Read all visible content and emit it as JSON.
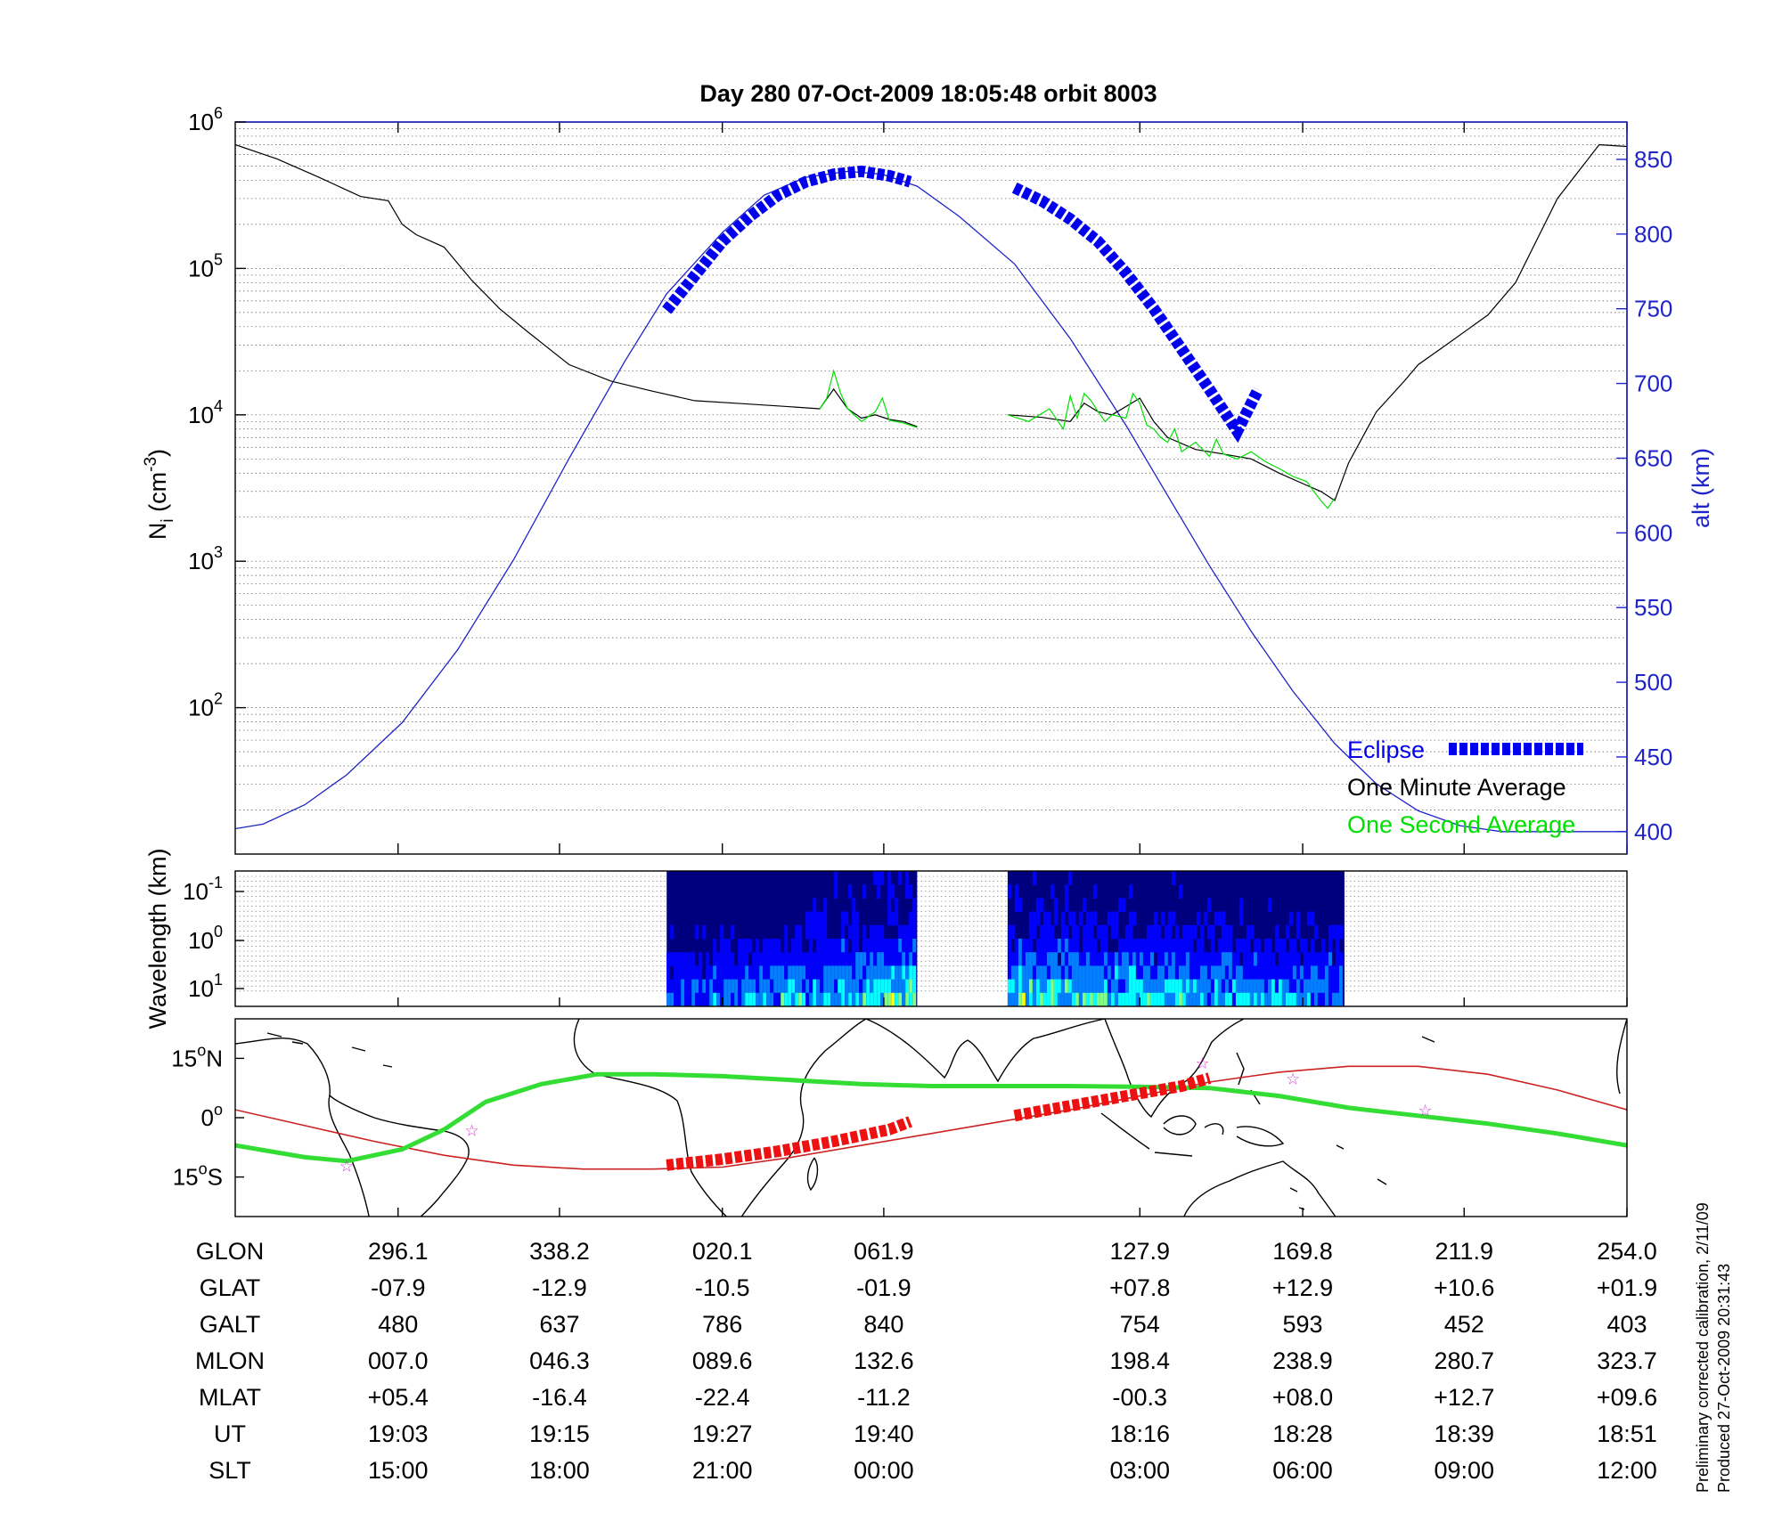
{
  "title": "Day 280  07-Oct-2009 18:05:48   orbit 8003",
  "colors": {
    "altitude": "#1f24c8",
    "minute_avg": "#000000",
    "second_avg": "#00e000",
    "eclipse": "#0000ee",
    "map_track": "#33dd33",
    "map_eclipse": "#ee1111",
    "map_magnetic_equator": "#cc2222",
    "map_stars": "#cc44cc"
  },
  "chart_data": [
    {
      "type": "line",
      "name": "density-altitude-panel",
      "xlim": [
        0,
        1
      ],
      "y_left": {
        "label_main": "N",
        "label_sub": "i",
        "label_unit_base": " (cm",
        "label_unit_exp": "-3",
        "label_unit_close": ")",
        "scale": "log",
        "ylim": [
          10,
          1000000
        ],
        "ticks": [
          {
            "value": 100,
            "base": "10",
            "exp": "2"
          },
          {
            "value": 1000,
            "base": "10",
            "exp": "3"
          },
          {
            "value": 10000,
            "base": "10",
            "exp": "4"
          },
          {
            "value": 100000,
            "base": "10",
            "exp": "5"
          },
          {
            "value": 1000000,
            "base": "10",
            "exp": "6"
          }
        ]
      },
      "y_right": {
        "label": "alt (km)",
        "ylim": [
          385,
          875
        ],
        "ticks": [
          400,
          450,
          500,
          550,
          600,
          650,
          700,
          750,
          800,
          850
        ]
      },
      "grid": true,
      "legend": {
        "position": "bottom-right",
        "entries": [
          {
            "label": "Eclipse",
            "color": "#0000ee"
          },
          {
            "label": "One Minute Average",
            "color": "#000000"
          },
          {
            "label": "One Second Average",
            "color": "#00e000"
          }
        ]
      },
      "series": [
        {
          "key": "altitude",
          "axis": "right",
          "x": [
            0.0,
            0.02,
            0.05,
            0.08,
            0.12,
            0.16,
            0.2,
            0.24,
            0.28,
            0.31,
            0.35,
            0.38,
            0.41,
            0.44,
            0.465,
            0.49,
            0.52,
            0.56,
            0.6,
            0.64,
            0.67,
            0.7,
            0.73,
            0.76,
            0.79,
            0.82,
            0.85,
            0.88,
            0.91,
            0.94,
            0.97,
            1.0
          ],
          "values": [
            402,
            405,
            418,
            438,
            473,
            522,
            582,
            650,
            715,
            760,
            801,
            826,
            838,
            842,
            840,
            832,
            812,
            780,
            730,
            672,
            625,
            578,
            534,
            494,
            459,
            432,
            414,
            404,
            400,
            400,
            400,
            400
          ]
        },
        {
          "key": "minute_avg",
          "axis": "left",
          "segments": [
            {
              "x": [
                0.0,
                0.03,
                0.06,
                0.09,
                0.11,
                0.12,
                0.13,
                0.15,
                0.17,
                0.19,
                0.21,
                0.24,
                0.27,
                0.3,
                0.33,
                0.36,
                0.39,
                0.42,
                0.43,
                0.44,
                0.45,
                0.46,
                0.47,
                0.48,
                0.49
              ],
              "values": [
                700000,
                560000,
                420000,
                310000,
                290000,
                200000,
                170000,
                140000,
                83000,
                53000,
                37000,
                22000,
                17000,
                14500,
                12500,
                12000,
                11500,
                11000,
                15000,
                11000,
                9500,
                10000,
                9300,
                9000,
                8300
              ]
            },
            {
              "x": [
                0.555,
                0.58,
                0.6,
                0.61,
                0.62,
                0.63,
                0.65,
                0.66,
                0.67,
                0.69,
                0.71,
                0.73,
                0.75,
                0.77,
                0.78,
                0.79,
                0.8,
                0.82,
                0.84,
                0.85,
                0.87,
                0.9,
                0.92,
                0.95,
                0.98,
                1.0
              ],
              "values": [
                10000,
                9600,
                9000,
                12000,
                10500,
                10000,
                13000,
                9000,
                7000,
                5800,
                5400,
                5000,
                4000,
                3300,
                3000,
                2600,
                4700,
                10500,
                17000,
                22000,
                30000,
                48000,
                80000,
                300000,
                700000,
                680000
              ]
            }
          ]
        },
        {
          "key": "second_avg",
          "axis": "left",
          "segments": [
            {
              "x": [
                0.42,
                0.425,
                0.43,
                0.435,
                0.44,
                0.45,
                0.46,
                0.465,
                0.47,
                0.48,
                0.49
              ],
              "values": [
                11000,
                13000,
                20000,
                14000,
                11000,
                9000,
                10500,
                13000,
                9200,
                8800,
                8200
              ]
            },
            {
              "x": [
                0.555,
                0.57,
                0.585,
                0.595,
                0.6,
                0.605,
                0.61,
                0.615,
                0.62,
                0.625,
                0.63,
                0.64,
                0.645,
                0.65,
                0.655,
                0.66,
                0.665,
                0.67,
                0.675,
                0.68,
                0.69,
                0.7,
                0.705,
                0.71,
                0.72,
                0.73,
                0.74,
                0.75,
                0.76,
                0.77,
                0.775,
                0.78,
                0.785,
                0.79
              ],
              "values": [
                10000,
                9000,
                11000,
                8000,
                13500,
                9500,
                14000,
                12500,
                10500,
                9000,
                10000,
                9500,
                14000,
                12000,
                8500,
                8000,
                7000,
                6500,
                8000,
                5600,
                6500,
                5200,
                6800,
                5400,
                5000,
                5600,
                4800,
                4300,
                3800,
                3500,
                3000,
                2600,
                2300,
                2700
              ]
            }
          ]
        },
        {
          "key": "eclipse",
          "axis": "right",
          "segments": [
            {
              "x": [
                0.31,
                0.33,
                0.35,
                0.37,
                0.39,
                0.41,
                0.43,
                0.45,
                0.47,
                0.485
              ],
              "values": [
                749,
                772,
                795,
                812,
                826,
                835,
                840,
                842,
                839,
                835
              ]
            },
            {
              "x": [
                0.56,
                0.58,
                0.6,
                0.62,
                0.64,
                0.66,
                0.68,
                0.7,
                0.72,
                0.735
              ],
              "values": [
                831,
                822,
                810,
                795,
                774,
                750,
                723,
                696,
                668,
                696
              ]
            }
          ]
        }
      ]
    },
    {
      "type": "heatmap",
      "name": "wavelength-panel",
      "ylabel_text": "Wavelength (km)",
      "ytick_labels": [
        {
          "base": "10",
          "exp": "-1"
        },
        {
          "base": "10",
          "exp": "0"
        },
        {
          "base": "10",
          "exp": "1"
        }
      ],
      "colormap": [
        "#00007f",
        "#0000ff",
        "#0080ff",
        "#00ffff",
        "#80ff80",
        "#ffff00",
        "#ff8000"
      ],
      "blocks_x": [
        [
          0.31,
          0.49
        ],
        [
          0.555,
          0.797
        ]
      ]
    },
    {
      "type": "scatter",
      "name": "ground-track-map",
      "ytick_labels": [
        {
          "num": "15",
          "deg": "o",
          "hemi": "N"
        },
        {
          "num": "0",
          "deg": "o",
          "hemi": ""
        },
        {
          "num": "15",
          "deg": "o",
          "hemi": "S"
        }
      ],
      "ylim": [
        -25,
        25
      ],
      "track": {
        "x": [
          0.0,
          0.05,
          0.08,
          0.12,
          0.15,
          0.18,
          0.22,
          0.26,
          0.3,
          0.35,
          0.4,
          0.45,
          0.5,
          0.55,
          0.6,
          0.65,
          0.7,
          0.75,
          0.8,
          0.85,
          0.9,
          0.95,
          1.0
        ],
        "values": [
          -7,
          -10,
          -11,
          -8,
          -3,
          4,
          8.5,
          11,
          11,
          10.5,
          9.5,
          8.5,
          8,
          8,
          8,
          7.8,
          7.5,
          5.5,
          2.5,
          0.5,
          -1.5,
          -4,
          -7
        ]
      },
      "magnetic_equator": {
        "x": [
          0.0,
          0.05,
          0.1,
          0.15,
          0.2,
          0.25,
          0.3,
          0.35,
          0.4,
          0.45,
          0.5,
          0.55,
          0.6,
          0.65,
          0.7,
          0.75,
          0.8,
          0.85,
          0.9,
          0.95,
          1.0
        ],
        "values": [
          2,
          -2,
          -6,
          -9.5,
          -12,
          -13,
          -13,
          -12.5,
          -10,
          -7,
          -4,
          -1,
          2,
          5.5,
          9,
          11.5,
          13,
          13,
          11,
          7,
          2
        ]
      },
      "eclipse": [
        {
          "x": [
            0.31,
            0.35,
            0.39,
            0.43,
            0.47,
            0.485
          ],
          "values": [
            -12,
            -10.5,
            -8.5,
            -6,
            -3,
            -1
          ]
        },
        {
          "x": [
            0.56,
            0.6,
            0.64,
            0.68,
            0.7
          ],
          "values": [
            0.5,
            3,
            5.5,
            8,
            10
          ]
        }
      ],
      "stars": {
        "x": [
          0.08,
          0.17,
          0.695,
          0.76,
          0.855
        ],
        "values": [
          -12,
          -3,
          14,
          10,
          2
        ]
      }
    }
  ],
  "table": {
    "rows": [
      {
        "label": "GLON",
        "values": [
          "296.1",
          "338.2",
          "020.1",
          "061.9",
          "127.9",
          "169.8",
          "211.9",
          "254.0"
        ]
      },
      {
        "label": "GLAT",
        "values": [
          "-07.9",
          "-12.9",
          "-10.5",
          "-01.9",
          "+07.8",
          "+12.9",
          "+10.6",
          "+01.9"
        ]
      },
      {
        "label": "GALT",
        "values": [
          "480",
          "637",
          "786",
          "840",
          "754",
          "593",
          "452",
          "403"
        ]
      },
      {
        "label": "MLON",
        "values": [
          "007.0",
          "046.3",
          "089.6",
          "132.6",
          "198.4",
          "238.9",
          "280.7",
          "323.7"
        ]
      },
      {
        "label": "MLAT",
        "values": [
          "+05.4",
          "-16.4",
          "-22.4",
          "-11.2",
          "-00.3",
          "+08.0",
          "+12.7",
          "+09.6"
        ]
      },
      {
        "label": "UT",
        "values": [
          "19:03",
          "19:15",
          "19:27",
          "19:40",
          "18:16",
          "18:28",
          "18:39",
          "18:51"
        ]
      },
      {
        "label": "SLT",
        "values": [
          "15:00",
          "18:00",
          "21:00",
          "00:00",
          "03:00",
          "06:00",
          "09:00",
          "12:00"
        ]
      }
    ]
  },
  "footer": {
    "line1": "Preliminary corrected calibration, 2/11/09",
    "line2": "Produced 27-Oct-2009 20:31:43"
  }
}
